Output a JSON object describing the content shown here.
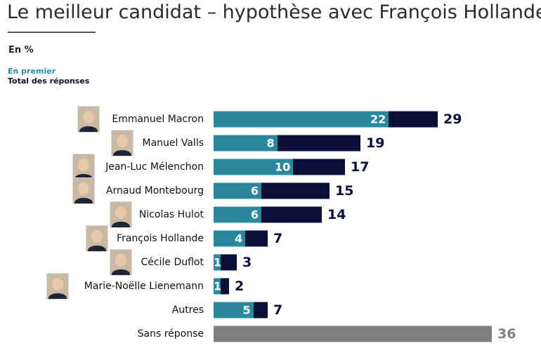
{
  "title": "Le meilleur candidat – hypothèse avec François Hollande",
  "unit": "En %",
  "chart_data": {
    "type": "bar",
    "title": "Le meilleur candidat – hypothèse avec François Hollande",
    "ylabel": "En %",
    "legend": [
      "En premier",
      "Total des réponses"
    ],
    "colors": {
      "first": "#2b889c",
      "total": "#0b0f38",
      "other": "#7f7f7f"
    },
    "categories": [
      "Emmanuel Macron",
      "Manuel Valls",
      "Jean-Luc Mélenchon",
      "Arnaud Montebourg",
      "Nicolas Hulot",
      "François Hollande",
      "Cécile Duflot",
      "Marie-Noëlle Lienemann",
      "Autres",
      "Sans réponse"
    ],
    "series": [
      {
        "name": "En premier",
        "values": [
          22,
          8,
          10,
          6,
          6,
          4,
          1,
          1,
          5,
          null
        ]
      },
      {
        "name": "Total des réponses",
        "values": [
          29,
          19,
          17,
          15,
          14,
          7,
          3,
          2,
          7,
          36
        ]
      }
    ],
    "photos": [
      true,
      true,
      true,
      true,
      true,
      true,
      true,
      true,
      false,
      false
    ]
  }
}
